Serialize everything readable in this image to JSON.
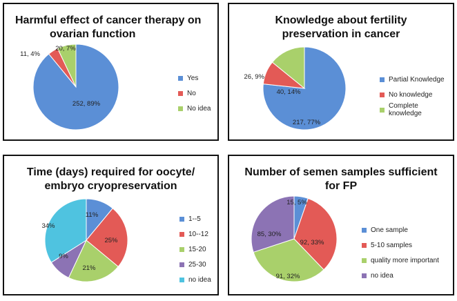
{
  "chart_data": [
    {
      "type": "pie",
      "title": "Harmful effect of cancer therapy on ovarian function",
      "title_lines": [
        "Harmful effect of cancer therapy on",
        "ovarian function"
      ],
      "categories": [
        "Yes",
        "No",
        "No idea"
      ],
      "values": [
        252,
        11,
        20
      ],
      "percents": [
        89,
        4,
        7
      ],
      "labels": [
        "252, 89%",
        "11, 4%",
        "20, 7%"
      ],
      "colors": [
        "#5b8fd6",
        "#e35a56",
        "#a9d06b"
      ],
      "legend": "right"
    },
    {
      "type": "pie",
      "title": "Knowledge about fertility preservation in cancer",
      "title_lines": [
        "Knowledge about fertility",
        "preservation in cancer"
      ],
      "categories": [
        "Partial Knowledge",
        "No knowledge",
        "Complete knowledge"
      ],
      "values": [
        217,
        26,
        40
      ],
      "percents": [
        77,
        9,
        14
      ],
      "labels": [
        "217, 77%",
        "26, 9%",
        "40, 14%"
      ],
      "colors": [
        "#5b8fd6",
        "#e35a56",
        "#a9d06b"
      ],
      "legend": "right"
    },
    {
      "type": "pie",
      "title": "Time (days) required for oocyte/ embryo cryopreservation",
      "title_lines": [
        "Time (days) required for oocyte/",
        "embryo cryopreservation"
      ],
      "categories": [
        "1--5",
        "10--12",
        "15-20",
        "25-30",
        "no idea"
      ],
      "values": [
        11,
        25,
        21,
        9,
        34
      ],
      "percents": [
        11,
        25,
        21,
        9,
        34
      ],
      "labels": [
        "11%",
        "25%",
        "21%",
        "9%",
        "34%"
      ],
      "colors": [
        "#5b8fd6",
        "#e35a56",
        "#a9d06b",
        "#8c73b4",
        "#4fc3e0"
      ],
      "legend": "right"
    },
    {
      "type": "pie",
      "title": "Number of semen samples sufficient for FP",
      "title_lines": [
        "Number of semen samples sufficient",
        "for FP"
      ],
      "categories": [
        "One sample",
        "5-10 samples",
        "quality more important",
        "no idea"
      ],
      "values": [
        15,
        92,
        91,
        85
      ],
      "percents": [
        5,
        33,
        32,
        30
      ],
      "labels": [
        "15, 5%",
        "92, 33%",
        "91, 32%",
        "85, 30%"
      ],
      "colors": [
        "#5b8fd6",
        "#e35a56",
        "#a9d06b",
        "#8c73b4"
      ],
      "legend": "right"
    }
  ]
}
